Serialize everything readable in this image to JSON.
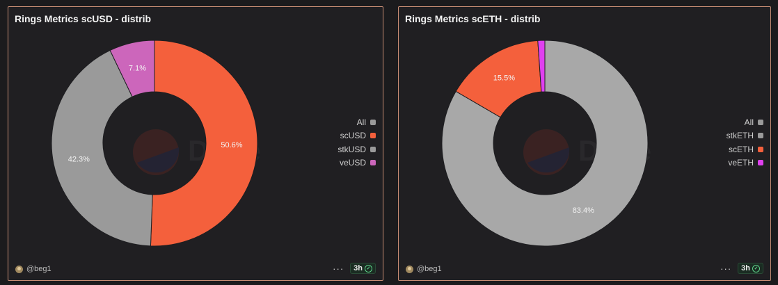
{
  "panels": [
    {
      "title": "Rings Metrics scUSD - distrib",
      "author": "@beg1",
      "age": "3h",
      "legend": [
        "All",
        "scUSD",
        "stkUSD",
        "veUSD"
      ],
      "legend_colors": [
        "#9a9a9a",
        "#f4603c",
        "#9a9a9a",
        "#cc66bb"
      ]
    },
    {
      "title": "Rings Metrics scETH - distrib",
      "author": "@beg1",
      "age": "3h",
      "legend": [
        "All",
        "stkETH",
        "scETH",
        "veETH"
      ],
      "legend_colors": [
        "#9a9a9a",
        "#9a9a9a",
        "#f4603c",
        "#e040f0"
      ]
    }
  ],
  "watermark": "Dune",
  "chart_data": [
    {
      "type": "pie",
      "title": "Rings Metrics scUSD - distrib",
      "categories": [
        "scUSD",
        "stkUSD",
        "veUSD"
      ],
      "values": [
        50.6,
        42.3,
        7.1
      ],
      "labels": [
        "50.6%",
        "42.3%",
        "7.1%"
      ],
      "colors": [
        "#f4603c",
        "#9a9a9a",
        "#cc66bb"
      ],
      "legend": "right"
    },
    {
      "type": "pie",
      "title": "Rings Metrics scETH - distrib",
      "categories": [
        "stkETH",
        "scETH",
        "veETH"
      ],
      "values": [
        83.4,
        15.5,
        1.1
      ],
      "labels": [
        "83.4%",
        "15.5%",
        ""
      ],
      "colors": [
        "#a8a8a8",
        "#f4603c",
        "#e040f0"
      ],
      "legend": "right"
    }
  ]
}
